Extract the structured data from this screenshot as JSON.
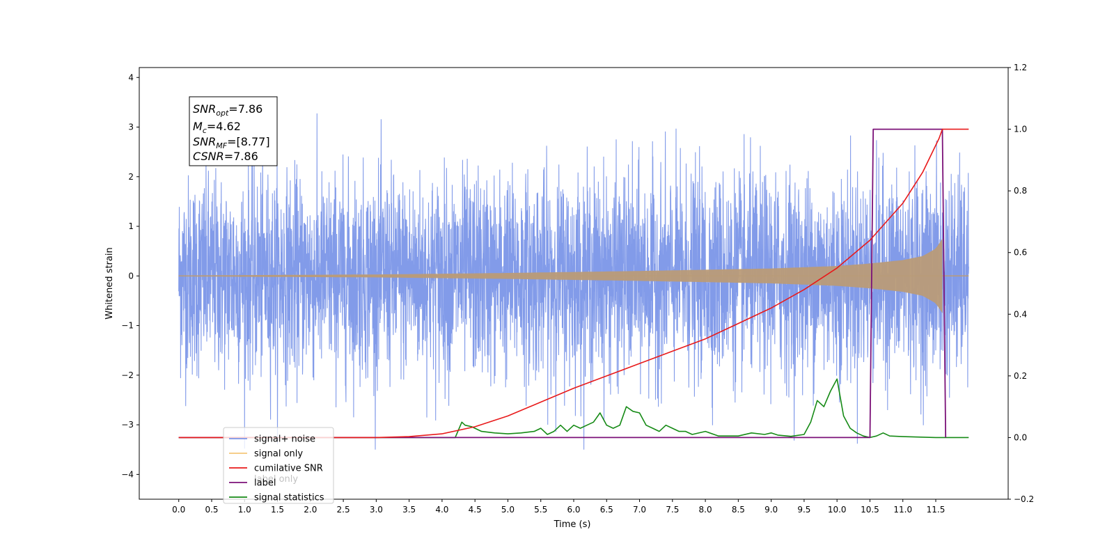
{
  "chart_data": {
    "type": "line",
    "title": "",
    "xlabel": "Time (s)",
    "ylabel": "Whitened strain",
    "xlim": [
      -0.6,
      12.6
    ],
    "ylim": [
      -4.5,
      4.2
    ],
    "y2lim": [
      -0.2,
      1.2
    ],
    "grid": false,
    "x_ticks": [
      "0.0",
      "0.5",
      "1.0",
      "1.5",
      "2.0",
      "2.5",
      "3.0",
      "3.5",
      "4.0",
      "4.5",
      "5.0",
      "5.5",
      "6.0",
      "6.5",
      "7.0",
      "7.5",
      "8.0",
      "8.5",
      "9.0",
      "9.5",
      "10.0",
      "10.5",
      "11.0",
      "11.5"
    ],
    "y_ticks": [
      "4",
      "3",
      "2",
      "1",
      "0",
      "−1",
      "−2",
      "−3",
      "−4"
    ],
    "y2_ticks": [
      "1.2",
      "1.0",
      "0.8",
      "0.6",
      "0.4",
      "0.2",
      "0.0",
      "−0.2"
    ],
    "annotation": {
      "lines": [
        {
          "sym": "SNR",
          "sub": "opt",
          "val": "=7.86"
        },
        {
          "sym": "M",
          "sub": "c",
          "val": "=4.62"
        },
        {
          "sym": "SNR",
          "sub": "MF",
          "val": "=[8.77]"
        },
        {
          "sym": "CSNR",
          "sub": "",
          "val": "=7.86"
        }
      ]
    },
    "legend": {
      "position": "lower-left",
      "entries": [
        {
          "name": "signal+ noise",
          "color": "#7b96e8"
        },
        {
          "name": "signal only",
          "color": "#f5c77a"
        },
        {
          "name": "cumilative SNR",
          "color": "#e8191a"
        },
        {
          "name": "label",
          "color": "#7b1178"
        },
        {
          "name": "signal statistics",
          "color": "#158a15"
        }
      ],
      "ghost_text": "label only"
    },
    "series": [
      {
        "name": "signal+ noise",
        "axis": "left",
        "color": "#7b96e8",
        "x_range": [
          0.0,
          12.0
        ],
        "amplitude": 1.0,
        "max": 3.8,
        "min": -3.5
      },
      {
        "name": "signal only",
        "axis": "left",
        "color": "#b99b78",
        "x_range": [
          0.0,
          11.6
        ],
        "envelope": {
          "x": [
            0.0,
            3.0,
            5.0,
            7.0,
            9.0,
            10.0,
            10.5,
            11.0,
            11.3,
            11.5,
            11.6
          ],
          "amp": [
            0.01,
            0.03,
            0.06,
            0.1,
            0.15,
            0.2,
            0.25,
            0.32,
            0.4,
            0.55,
            0.75
          ]
        }
      },
      {
        "name": "cumilative SNR",
        "axis": "right",
        "color": "#e8191a",
        "x": [
          0.0,
          3.0,
          3.5,
          4.0,
          4.5,
          5.0,
          5.5,
          6.0,
          6.5,
          7.0,
          7.5,
          8.0,
          8.5,
          9.0,
          9.5,
          10.0,
          10.5,
          11.0,
          11.3,
          11.55,
          11.6,
          12.0
        ],
        "y": [
          0.0,
          0.0,
          0.003,
          0.012,
          0.035,
          0.07,
          0.115,
          0.16,
          0.2,
          0.24,
          0.28,
          0.32,
          0.37,
          0.42,
          0.48,
          0.55,
          0.64,
          0.76,
          0.86,
          0.97,
          1.0,
          1.0
        ]
      },
      {
        "name": "label",
        "axis": "right",
        "color": "#7b1178",
        "x": [
          0.0,
          10.5,
          10.55,
          11.6,
          11.65,
          11.65
        ],
        "y": [
          0.0,
          0.0,
          1.0,
          1.0,
          0.0,
          0.0
        ]
      },
      {
        "name": "signal statistics",
        "axis": "right",
        "color": "#158a15",
        "x": [
          0.0,
          4.2,
          4.3,
          4.35,
          4.45,
          4.5,
          4.6,
          4.8,
          5.0,
          5.2,
          5.4,
          5.5,
          5.6,
          5.7,
          5.8,
          5.9,
          6.0,
          6.1,
          6.2,
          6.3,
          6.4,
          6.5,
          6.6,
          6.7,
          6.8,
          6.9,
          7.0,
          7.1,
          7.2,
          7.3,
          7.4,
          7.5,
          7.6,
          7.7,
          7.8,
          8.0,
          8.2,
          8.5,
          8.7,
          8.9,
          9.0,
          9.1,
          9.3,
          9.5,
          9.6,
          9.7,
          9.8,
          9.9,
          10.0,
          10.1,
          10.2,
          10.3,
          10.4,
          10.5,
          10.6,
          10.7,
          10.8,
          11.0,
          11.5,
          12.0
        ],
        "y": [
          0.0,
          0.0,
          0.05,
          0.04,
          0.035,
          0.03,
          0.02,
          0.015,
          0.012,
          0.015,
          0.02,
          0.03,
          0.01,
          0.02,
          0.04,
          0.02,
          0.04,
          0.03,
          0.04,
          0.05,
          0.08,
          0.04,
          0.03,
          0.04,
          0.1,
          0.085,
          0.08,
          0.04,
          0.03,
          0.02,
          0.04,
          0.03,
          0.02,
          0.02,
          0.01,
          0.02,
          0.005,
          0.005,
          0.015,
          0.01,
          0.015,
          0.008,
          0.004,
          0.01,
          0.05,
          0.12,
          0.1,
          0.15,
          0.19,
          0.07,
          0.03,
          0.015,
          0.005,
          0.0,
          0.005,
          0.015,
          0.005,
          0.003,
          0.0,
          0.0
        ]
      }
    ]
  }
}
